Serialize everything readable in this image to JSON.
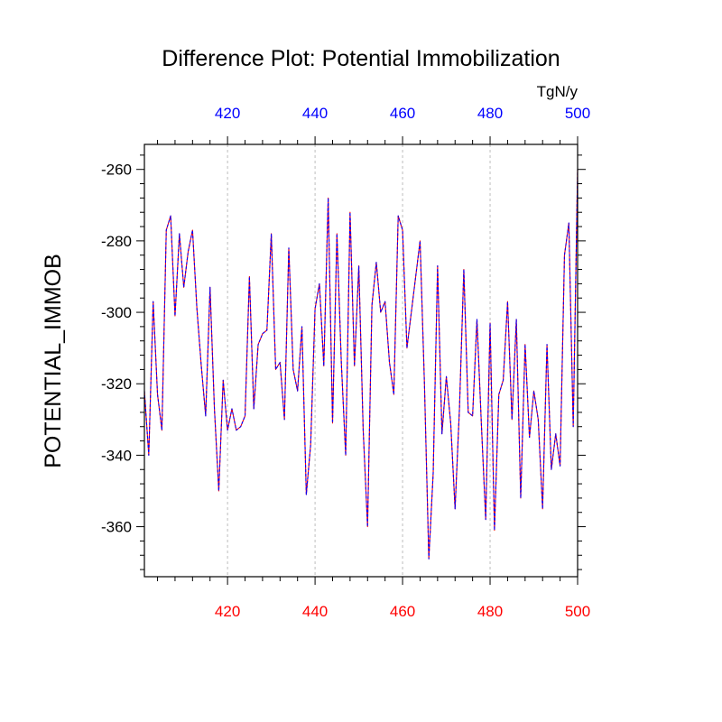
{
  "chart_data": {
    "type": "line",
    "title": "Difference Plot: Potential Immobilization",
    "ylabel": "POTENTIAL_IMMOB",
    "units": "TgN/y",
    "xlim": [
      401,
      500
    ],
    "ylim": [
      -374,
      -253
    ],
    "top_axis": {
      "ticks": [
        "420",
        "440",
        "460",
        "480",
        "500"
      ],
      "color": "#0000ff"
    },
    "bottom_axis": {
      "ticks": [
        "420",
        "440",
        "460",
        "480",
        "500"
      ],
      "color": "#ff0000"
    },
    "yticks": [
      "-260",
      "-280",
      "-300",
      "-320",
      "-340",
      "-360"
    ],
    "grid": "vertical dashed at major x ticks",
    "series": [
      {
        "color": "#ff0000",
        "style": "solid",
        "x": [
          401,
          402,
          403,
          404,
          405,
          406,
          407,
          408,
          409,
          410,
          411,
          412,
          413,
          414,
          415,
          416,
          417,
          418,
          419,
          420,
          421,
          422,
          423,
          424,
          425,
          426,
          427,
          428,
          429,
          430,
          431,
          432,
          433,
          434,
          435,
          436,
          437,
          438,
          439,
          440,
          441,
          442,
          443,
          444,
          445,
          446,
          447,
          448,
          449,
          450,
          451,
          452,
          453,
          454,
          455,
          456,
          457,
          458,
          459,
          460,
          461,
          462,
          463,
          464,
          465,
          466,
          467,
          468,
          469,
          470,
          471,
          472,
          473,
          474,
          475,
          476,
          477,
          478,
          479,
          480,
          481,
          482,
          483,
          484,
          485,
          486,
          487,
          488,
          489,
          490,
          491,
          492,
          493,
          494,
          495,
          496,
          497,
          498,
          499,
          500
        ],
        "values": [
          -322,
          -340,
          -297,
          -323,
          -333,
          -277,
          -273,
          -301,
          -278,
          -293,
          -283,
          -277,
          -299,
          -315,
          -329,
          -293,
          -327,
          -350,
          -319,
          -333,
          -327,
          -333,
          -332,
          -329,
          -290,
          -327,
          -309,
          -306,
          -305,
          -278,
          -316,
          -314,
          -330,
          -282,
          -316,
          -322,
          -304,
          -351,
          -337,
          -299,
          -292,
          -315,
          -268,
          -331,
          -278,
          -314,
          -340,
          -272,
          -315,
          -287,
          -333,
          -360,
          -298,
          -286,
          -300,
          -297,
          -314,
          -323,
          -273,
          -277,
          -310,
          -300,
          -290,
          -280,
          -320,
          -369,
          -345,
          -287,
          -334,
          -318,
          -331,
          -355,
          -327,
          -288,
          -328,
          -329,
          -302,
          -331,
          -358,
          -303,
          -361,
          -323,
          -319,
          -297,
          -330,
          -302,
          -352,
          -309,
          -335,
          -322,
          -330,
          -355,
          -309,
          -344,
          -334,
          -343,
          -284,
          -275,
          -332,
          -260
        ]
      },
      {
        "color": "#0000ff",
        "style": "dashed",
        "x": [
          401,
          402,
          403,
          404,
          405,
          406,
          407,
          408,
          409,
          410,
          411,
          412,
          413,
          414,
          415,
          416,
          417,
          418,
          419,
          420,
          421,
          422,
          423,
          424,
          425,
          426,
          427,
          428,
          429,
          430,
          431,
          432,
          433,
          434,
          435,
          436,
          437,
          438,
          439,
          440,
          441,
          442,
          443,
          444,
          445,
          446,
          447,
          448,
          449,
          450,
          451,
          452,
          453,
          454,
          455,
          456,
          457,
          458,
          459,
          460,
          461,
          462,
          463,
          464,
          465,
          466,
          467,
          468,
          469,
          470,
          471,
          472,
          473,
          474,
          475,
          476,
          477,
          478,
          479,
          480,
          481,
          482,
          483,
          484,
          485,
          486,
          487,
          488,
          489,
          490,
          491,
          492,
          493,
          494,
          495,
          496,
          497,
          498,
          499,
          500
        ],
        "values": [
          -322,
          -340,
          -297,
          -323,
          -333,
          -277,
          -273,
          -301,
          -278,
          -293,
          -283,
          -277,
          -299,
          -315,
          -329,
          -293,
          -327,
          -350,
          -319,
          -333,
          -327,
          -333,
          -332,
          -329,
          -290,
          -327,
          -309,
          -306,
          -305,
          -278,
          -316,
          -314,
          -330,
          -282,
          -316,
          -322,
          -304,
          -351,
          -337,
          -299,
          -292,
          -315,
          -268,
          -331,
          -278,
          -314,
          -340,
          -272,
          -315,
          -287,
          -333,
          -360,
          -298,
          -286,
          -300,
          -297,
          -314,
          -323,
          -273,
          -277,
          -310,
          -300,
          -290,
          -280,
          -320,
          -369,
          -345,
          -287,
          -334,
          -318,
          -331,
          -355,
          -327,
          -288,
          -328,
          -329,
          -302,
          -331,
          -358,
          -303,
          -361,
          -323,
          -319,
          -297,
          -330,
          -302,
          -352,
          -309,
          -335,
          -322,
          -330,
          -355,
          -309,
          -344,
          -334,
          -343,
          -284,
          -275,
          -332,
          -260
        ]
      }
    ]
  }
}
